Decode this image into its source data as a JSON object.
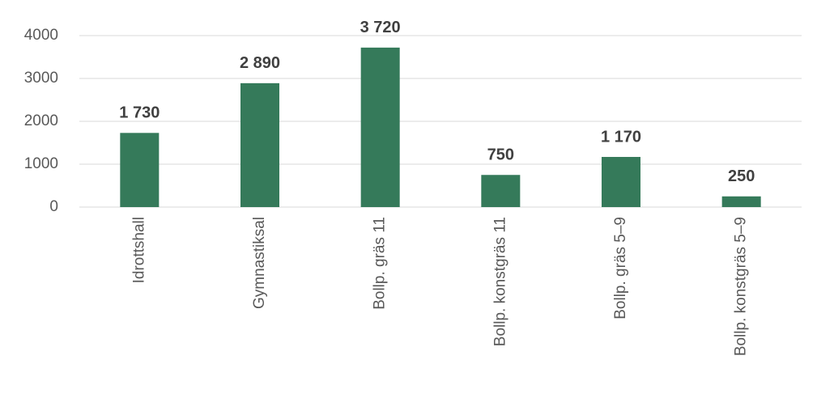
{
  "chart_data": {
    "type": "bar",
    "categories": [
      "Idrottshall",
      "Gymnastiksal",
      "Bollp. gräs 11",
      "Bollp. konstgräs 11",
      "Bollp. gräs 5–9",
      "Bollp. konstgräs 5–9"
    ],
    "values": [
      1730,
      2890,
      3720,
      750,
      1170,
      250
    ],
    "value_labels": [
      "1 730",
      "2 890",
      "3 720",
      "750",
      "1 170",
      "250"
    ],
    "color": "#357a5a",
    "ylim": [
      0,
      4000
    ],
    "yticks": [
      0,
      1000,
      2000,
      3000,
      4000
    ],
    "grid": true
  }
}
